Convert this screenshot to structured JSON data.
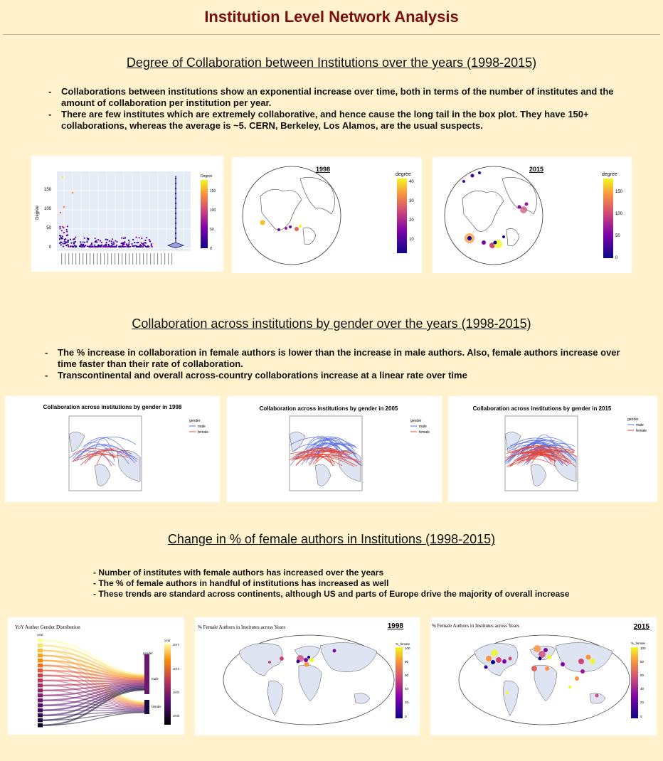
{
  "page": {
    "title": "Institution Level Network Analysis"
  },
  "sections": [
    {
      "heading": "Degree of Collaboration between Institutions over the years (1998-2015)",
      "bullets": [
        "Collaborations between institutions show an exponential increase over time, both in terms of the number of institutes and the amount of collaboration per institution per year.",
        "There are few institutes which are extremely collaborative, and hence cause the long tail in the box plot. They have 150+ collaborations, whereas the average is ~5. CERN, Berkeley, Los Alamos, are the usual suspects."
      ]
    },
    {
      "heading": "Collaboration across institutions by gender over the years (1998-2015)",
      "bullets": [
        "The % increase in collaboration in female authors is lower than the increase in male authors. Also, female authors increase over time faster than their rate of collaboration.",
        "Transcontinental and overall across-country collaborations increase at a linear rate over time"
      ]
    },
    {
      "heading": "Change in % of female authors in Institutions (1998-2015)",
      "bullets": [
        "Number of institutes with female authors has increased over the years",
        "The % of female authors in handful of institutions has increased as well",
        "These trends are standard across continents, although US and parts of Europe drive the majority of overall increase"
      ]
    }
  ],
  "degree_plot": {
    "ylabel": "Degree",
    "legend_title": "Degree",
    "yticks": [
      "0",
      "50",
      "100",
      "150"
    ],
    "colorbar_ticks": [
      "150",
      "100",
      "50",
      "0"
    ]
  },
  "globe_1998": {
    "title": "1998",
    "legend_title": "degree",
    "colorbar_ticks": [
      "40",
      "30",
      "20",
      "10"
    ]
  },
  "globe_2015": {
    "title": "2015",
    "legend_title": "degree",
    "colorbar_ticks": [
      "150",
      "100",
      "50",
      "0"
    ]
  },
  "gender_maps": [
    {
      "title": "Collaboration across institutions by gender in 1998"
    },
    {
      "title": "Collaboration across institutions by gender in 2005"
    },
    {
      "title": "Collaboration across institutions by gender in 2015"
    }
  ],
  "gender_legend": {
    "title": "gender",
    "male": "male",
    "female": "female",
    "male_color": "#5b6ee1",
    "female_color": "#e0483e"
  },
  "sankey": {
    "title": "YoY Author Gender Distribution",
    "left_label": "year",
    "right_label": "gender",
    "nodes_right": [
      "male",
      "female"
    ],
    "colorbar_title": "year",
    "colorbar_ticks": [
      "2015",
      "2010",
      "2005",
      "2000"
    ]
  },
  "female_map_1998": {
    "title": "% Female Authors in Institutes across Years",
    "year": "1998",
    "legend_title": "%_female",
    "colorbar_ticks": [
      "100",
      "80",
      "60",
      "40",
      "20",
      "0"
    ]
  },
  "female_map_2015": {
    "title": "% Female Authors in Institutes across Years",
    "year": "2015",
    "legend_title": "%_female",
    "colorbar_ticks": [
      "100",
      "80",
      "60",
      "40",
      "20",
      "0"
    ]
  }
}
